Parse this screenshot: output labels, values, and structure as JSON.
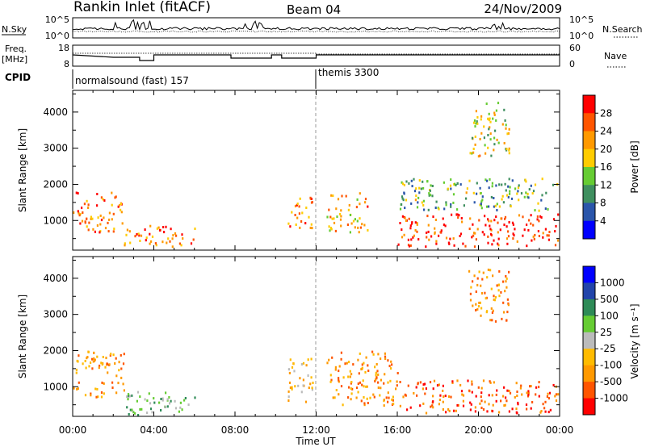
{
  "header": {
    "station": "Rankin Inlet (fitACF)",
    "beam": "Beam 04",
    "date": "24/Nov/2009"
  },
  "strip_labels": {
    "nsky": "N.Sky",
    "nsky_ticks": [
      "10^5",
      "10^0"
    ],
    "nsearch": "N.Search",
    "nsearch_ticks": [
      "10^5",
      "10^0"
    ],
    "freq_top": "Freq.",
    "freq_unit": "[MHz]",
    "freq_ticks": [
      "18",
      "8"
    ],
    "nave": "Nave",
    "nave_ticks": [
      "60",
      "0"
    ],
    "cpid": "CPID"
  },
  "cpid_segments": [
    {
      "label": "normalsound (fast) 157",
      "start_hour": 0
    },
    {
      "label": "themis 3300",
      "start_hour": 12
    }
  ],
  "x_axis": {
    "label": "Time UT",
    "ticks": [
      "00:00",
      "04:00",
      "08:00",
      "12:00",
      "16:00",
      "20:00",
      "00:00"
    ]
  },
  "power_panel": {
    "ylabel": "Slant Range [km]",
    "yticks": [
      "1000",
      "2000",
      "3000",
      "4000"
    ],
    "colorbar_label": "Power [dB]",
    "colorbar_ticks": [
      "28",
      "24",
      "20",
      "16",
      "12",
      "8",
      "4"
    ]
  },
  "velocity_panel": {
    "ylabel": "Slant Range [km]",
    "yticks": [
      "1000",
      "2000",
      "3000",
      "4000"
    ],
    "colorbar_label": "Velocity [m s⁻¹]",
    "colorbar_ticks": [
      "1000",
      "500",
      "100",
      "25",
      "-25",
      "-100",
      "-500",
      "-1000"
    ]
  },
  "colors": {
    "power_scale": [
      "#0000ff",
      "#2a55aa",
      "#3f8f5f",
      "#66cc33",
      "#ffcc00",
      "#ff9900",
      "#ff5500",
      "#ff0000"
    ],
    "velocity_scale": [
      "#ff0000",
      "#ff5500",
      "#ff9900",
      "#ffbb00",
      "#bbbbbb",
      "#66cc33",
      "#2e8b57",
      "#2244aa",
      "#0000ff"
    ]
  },
  "chart_data": [
    {
      "type": "heatmap",
      "title": "Power",
      "x": "time UT (hours 0-24)",
      "y": "slant range (km)",
      "xlim": [
        0,
        24
      ],
      "ylim": [
        180,
        4600
      ],
      "value_range_db": [
        0,
        30
      ],
      "echo_regions": [
        {
          "t0": 0.0,
          "t1": 2.5,
          "r0": 700,
          "r1": 1800,
          "power": 26
        },
        {
          "t0": 2.5,
          "t1": 6.0,
          "r0": 300,
          "r1": 900,
          "power": 24
        },
        {
          "t0": 10.5,
          "t1": 11.8,
          "r0": 800,
          "r1": 1700,
          "power": 26
        },
        {
          "t0": 12.5,
          "t1": 14.5,
          "r0": 700,
          "r1": 1800,
          "power": 20
        },
        {
          "t0": 16.0,
          "t1": 24.0,
          "r0": 300,
          "r1": 1200,
          "power": 28
        },
        {
          "t0": 16.0,
          "t1": 24.0,
          "r0": 1300,
          "r1": 2200,
          "power": 14
        },
        {
          "t0": 19.5,
          "t1": 21.5,
          "r0": 2800,
          "r1": 4300,
          "power": 16
        }
      ]
    },
    {
      "type": "heatmap",
      "title": "Velocity",
      "x": "time UT (hours 0-24)",
      "y": "slant range (km)",
      "xlim": [
        0,
        24
      ],
      "ylim": [
        180,
        4600
      ],
      "value_range_ms": [
        -1000,
        1000
      ],
      "echo_regions": [
        {
          "t0": 0.0,
          "t1": 2.5,
          "r0": 700,
          "r1": 2000,
          "velocity": -100
        },
        {
          "t0": 2.5,
          "t1": 6.0,
          "r0": 200,
          "r1": 900,
          "velocity": 50
        },
        {
          "t0": 10.5,
          "t1": 11.8,
          "r0": 600,
          "r1": 1800,
          "velocity": -80
        },
        {
          "t0": 12.5,
          "t1": 16.0,
          "r0": 500,
          "r1": 2000,
          "velocity": -150
        },
        {
          "t0": 16.0,
          "t1": 24.0,
          "r0": 300,
          "r1": 1200,
          "velocity": -500
        },
        {
          "t0": 19.5,
          "t1": 21.5,
          "r0": 2800,
          "r1": 4300,
          "velocity": -100
        }
      ]
    }
  ]
}
